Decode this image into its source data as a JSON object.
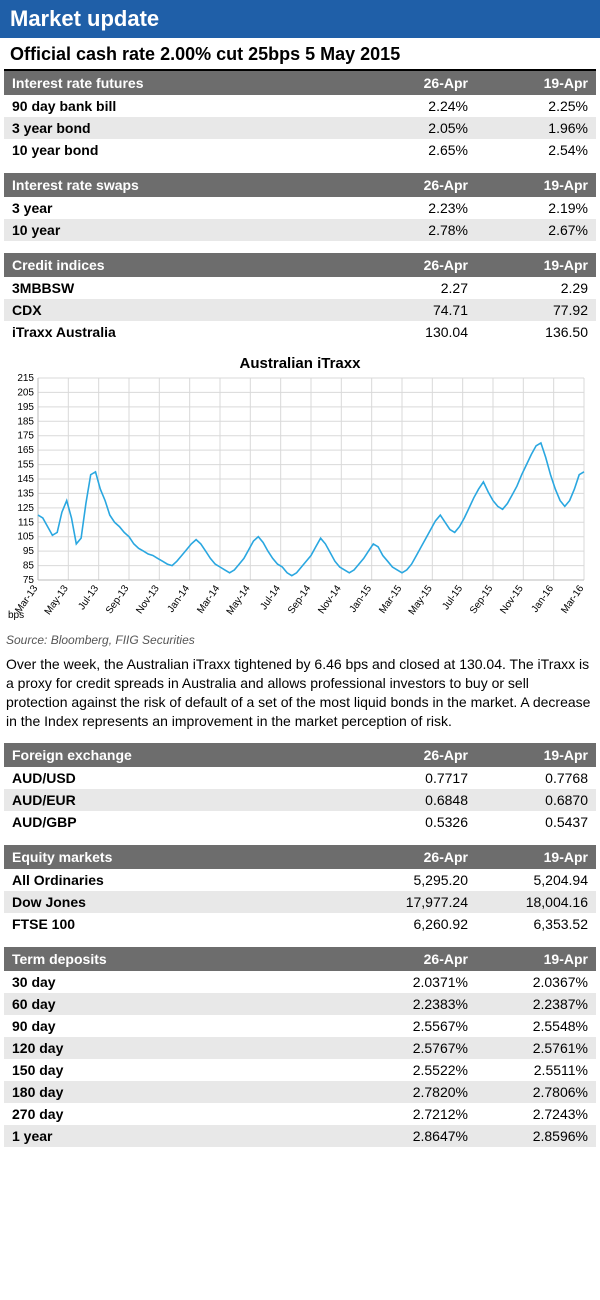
{
  "banner": "Market update",
  "subhead": "Official cash rate 2.00% cut 25bps 5 May 2015",
  "tables": {
    "futures": {
      "header": [
        "Interest rate futures",
        "26-Apr",
        "19-Apr"
      ],
      "rows": [
        [
          "90 day bank bill",
          "2.24%",
          "2.25%"
        ],
        [
          "3 year bond",
          "2.05%",
          "1.96%"
        ],
        [
          "10 year bond",
          "2.65%",
          "2.54%"
        ]
      ]
    },
    "swaps": {
      "header": [
        "Interest rate swaps",
        "26-Apr",
        "19-Apr"
      ],
      "rows": [
        [
          "3 year",
          "2.23%",
          "2.19%"
        ],
        [
          "10 year",
          "2.78%",
          "2.67%"
        ]
      ]
    },
    "credit": {
      "header": [
        "Credit indices",
        "26-Apr",
        "19-Apr"
      ],
      "rows": [
        [
          "3MBBSW",
          "2.27",
          "2.29"
        ],
        [
          "CDX",
          "74.71",
          "77.92"
        ],
        [
          "iTraxx Australia",
          "130.04",
          "136.50"
        ]
      ]
    },
    "fx": {
      "header": [
        "Foreign exchange",
        "26-Apr",
        "19-Apr"
      ],
      "rows": [
        [
          "AUD/USD",
          "0.7717",
          "0.7768"
        ],
        [
          "AUD/EUR",
          "0.6848",
          "0.6870"
        ],
        [
          "AUD/GBP",
          "0.5326",
          "0.5437"
        ]
      ]
    },
    "equity": {
      "header": [
        "Equity markets",
        "26-Apr",
        "19-Apr"
      ],
      "rows": [
        [
          "All Ordinaries",
          "5,295.20",
          "5,204.94"
        ],
        [
          "Dow Jones",
          "17,977.24",
          "18,004.16"
        ],
        [
          "FTSE 100",
          "6,260.92",
          "6,353.52"
        ]
      ]
    },
    "td": {
      "header": [
        "Term deposits",
        "26-Apr",
        "19-Apr"
      ],
      "rows": [
        [
          "30 day",
          "2.0371%",
          "2.0367%"
        ],
        [
          "60 day",
          "2.2383%",
          "2.2387%"
        ],
        [
          "90 day",
          "2.5567%",
          "2.5548%"
        ],
        [
          "120 day",
          "2.5767%",
          "2.5761%"
        ],
        [
          "150 day",
          "2.5522%",
          "2.5511%"
        ],
        [
          "180 day",
          "2.7820%",
          "2.7806%"
        ],
        [
          "270 day",
          "2.7212%",
          "2.7243%"
        ],
        [
          "1 year",
          "2.8647%",
          "2.8596%"
        ]
      ]
    }
  },
  "chart": {
    "type": "line",
    "title": "Australian iTraxx",
    "x_label": "bps",
    "line_color": "#2aa7e0",
    "grid_color": "#d9d9d9",
    "background": "#ffffff",
    "line_width": 1.6,
    "ylim": [
      75,
      215
    ],
    "ytick_step": 10,
    "x_categories": [
      "Mar-13",
      "May-13",
      "Jul-13",
      "Sep-13",
      "Nov-13",
      "Jan-14",
      "Mar-14",
      "May-14",
      "Jul-14",
      "Sep-14",
      "Nov-14",
      "Jan-15",
      "Mar-15",
      "May-15",
      "Jul-15",
      "Sep-15",
      "Nov-15",
      "Jan-16",
      "Mar-16"
    ],
    "series": [
      120,
      118,
      112,
      106,
      108,
      122,
      130,
      118,
      100,
      104,
      128,
      148,
      150,
      138,
      130,
      120,
      115,
      112,
      108,
      105,
      100,
      97,
      95,
      93,
      92,
      90,
      88,
      86,
      85,
      88,
      92,
      96,
      100,
      103,
      100,
      95,
      90,
      86,
      84,
      82,
      80,
      82,
      86,
      90,
      96,
      102,
      105,
      101,
      95,
      90,
      86,
      84,
      80,
      78,
      80,
      84,
      88,
      92,
      98,
      104,
      100,
      94,
      88,
      84,
      82,
      80,
      82,
      86,
      90,
      95,
      100,
      98,
      92,
      88,
      84,
      82,
      80,
      82,
      86,
      92,
      98,
      104,
      110,
      116,
      120,
      115,
      110,
      108,
      112,
      118,
      125,
      132,
      138,
      143,
      136,
      130,
      126,
      124,
      128,
      134,
      140,
      148,
      155,
      162,
      168,
      170,
      160,
      148,
      138,
      130,
      126,
      130,
      138,
      148,
      150
    ]
  },
  "source": "Source: Bloomberg, FIIG Securities",
  "body": "Over the week, the Australian iTraxx tightened by 6.46 bps and closed at 130.04. The iTraxx is a proxy for credit spreads in Australia and allows professional investors to buy or sell protection against the risk of default of a set of the most liquid bonds in the market. A decrease in the Index represents an improvement in the market perception of risk."
}
